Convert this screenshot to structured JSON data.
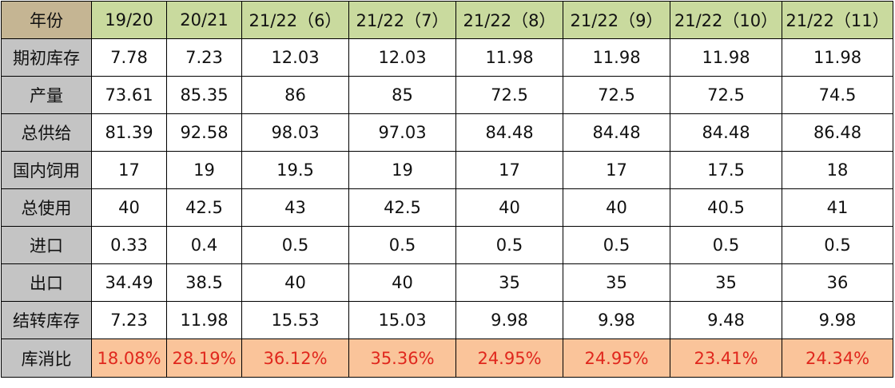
{
  "table": {
    "corner_label": "年份",
    "columns": [
      "19/20",
      "20/21",
      "21/22（6）",
      "21/22（7）",
      "21/22（8）",
      "21/22（9）",
      "21/22（10）",
      "21/22（11）"
    ],
    "rows": [
      {
        "label": "期初库存",
        "values": [
          "7.78",
          "7.23",
          "12.03",
          "12.03",
          "11.98",
          "11.98",
          "11.98",
          "11.98"
        ]
      },
      {
        "label": "产量",
        "values": [
          "73.61",
          "85.35",
          "86",
          "85",
          "72.5",
          "72.5",
          "72.5",
          "74.5"
        ]
      },
      {
        "label": "总供给",
        "values": [
          "81.39",
          "92.58",
          "98.03",
          "97.03",
          "84.48",
          "84.48",
          "84.48",
          "86.48"
        ]
      },
      {
        "label": "国内饲用",
        "values": [
          "17",
          "19",
          "19.5",
          "19",
          "17",
          "17",
          "17.5",
          "18"
        ]
      },
      {
        "label": "总使用",
        "values": [
          "40",
          "42.5",
          "43",
          "42.5",
          "40",
          "40",
          "40.5",
          "41"
        ]
      },
      {
        "label": "进口",
        "values": [
          "0.33",
          "0.4",
          "0.5",
          "0.5",
          "0.5",
          "0.5",
          "0.5",
          "0.5"
        ]
      },
      {
        "label": "出口",
        "values": [
          "34.49",
          "38.5",
          "40",
          "40",
          "35",
          "35",
          "35",
          "36"
        ]
      },
      {
        "label": "结转库存",
        "values": [
          "7.23",
          "11.98",
          "15.53",
          "15.03",
          "9.98",
          "9.98",
          "9.48",
          "9.98"
        ]
      },
      {
        "label": "库消比",
        "values": [
          "18.08%",
          "28.19%",
          "36.12%",
          "35.36%",
          "24.95%",
          "24.95%",
          "23.41%",
          "24.34%"
        ]
      }
    ]
  },
  "colors": {
    "corner_bg": "#c5b593",
    "column_header_bg": "#c9da9e",
    "row_header_bg": "#c4c4c4",
    "ratio_row_bg": "#fac49a",
    "ratio_row_text": "#e0271d",
    "border": "#000000"
  }
}
